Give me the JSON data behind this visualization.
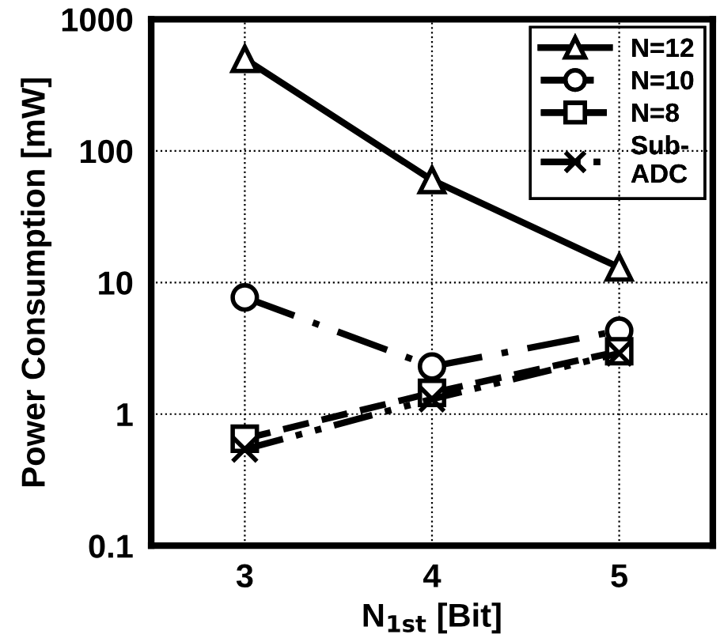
{
  "chart_data": {
    "type": "line",
    "xlabel": "N$_{1st}$ [Bit]",
    "ylabel": "Power Consumption [mW]",
    "x": [
      3,
      4,
      5
    ],
    "xlim": [
      2.5,
      5.5
    ],
    "xticks": [
      3,
      4,
      5
    ],
    "log": "y",
    "ylim": [
      0.1,
      1000
    ],
    "yticks": [
      0.1,
      1,
      10,
      100,
      1000
    ],
    "grid": true,
    "legend": "top right",
    "series": [
      {
        "name": "N=12",
        "color": "#000000",
        "values": [
          500,
          60,
          13
        ],
        "marker": "triangle",
        "line_style": "solid"
      },
      {
        "name": "N=10",
        "color": "#000000",
        "values": [
          7.7,
          2.3,
          4.3
        ],
        "marker": "circle",
        "line_style": "dashdot"
      },
      {
        "name": "N=8",
        "color": "#000000",
        "values": [
          0.65,
          1.45,
          3.0
        ],
        "marker": "square",
        "line_style": "dashed"
      },
      {
        "name": "Sub-\nADC",
        "color": "#000000",
        "values": [
          0.54,
          1.3,
          2.9
        ],
        "marker": "cross",
        "line_style": "dashdotdot"
      }
    ]
  }
}
